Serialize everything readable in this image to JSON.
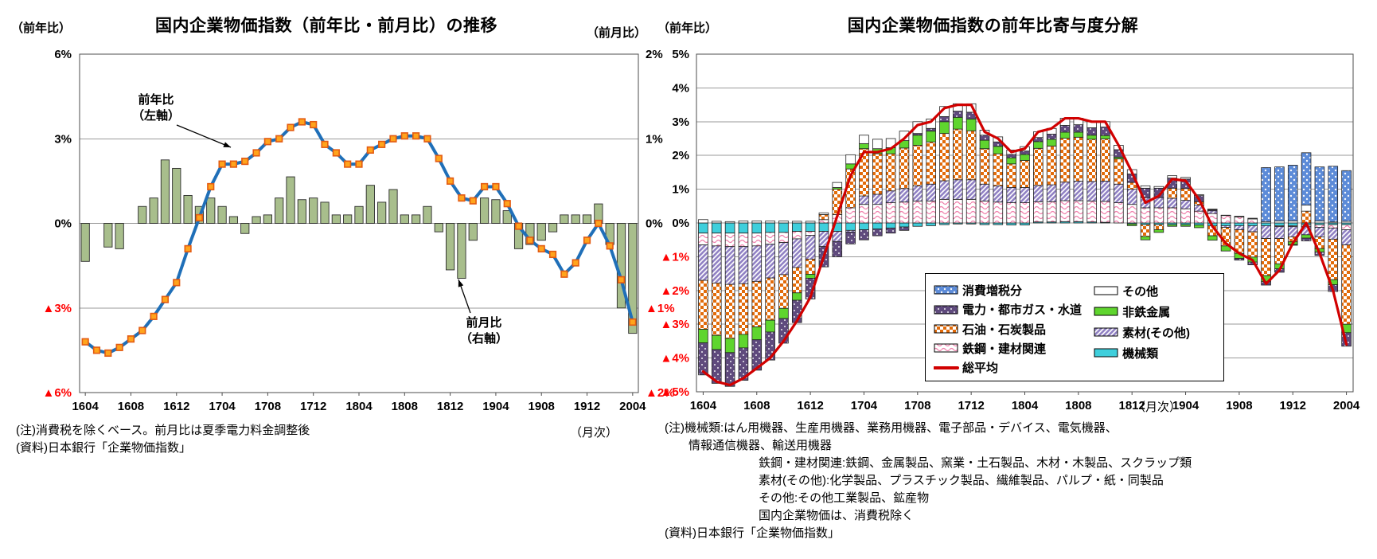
{
  "left_chart": {
    "caption_left": "（前年比）",
    "caption_right": "（前月比）",
    "title": "国内企業物価指数（前年比・前月比）の推移",
    "annotation_line": {
      "l1": "前年比",
      "l2": "（左軸）"
    },
    "annotation_bar": {
      "l1": "前月比",
      "l2": "（右軸）"
    },
    "notes": {
      "l1": "(注)消費税を除くベース。前月比は夏季電力料金調整後",
      "l2": "(資料)日本銀行「企業物価指数」"
    },
    "x_unit": "（月次）"
  },
  "right_chart": {
    "caption_left": "（前年比）",
    "title": "国内企業物価指数の前年比寄与度分解",
    "x_unit": "（月次）",
    "legend": {
      "columns": [
        [
          {
            "key": "tax",
            "label": "消費増税分"
          },
          {
            "key": "utility",
            "label": "電力・都市ガス・水道"
          },
          {
            "key": "oil",
            "label": "石油・石炭製品"
          },
          {
            "key": "steel",
            "label": "鉄鋼・建材関連"
          },
          {
            "key": "total",
            "label": "総平均"
          }
        ],
        [
          {
            "key": "other",
            "label": "その他"
          },
          {
            "key": "nonferrous",
            "label": "非鉄金属"
          },
          {
            "key": "materials",
            "label": "素材(その他)"
          },
          {
            "key": "machinery",
            "label": "機械類"
          }
        ]
      ]
    },
    "notes": [
      "(注)機械類:はん用機器、生産用機器、業務用機器、電子部品・デバイス、電気機器、",
      "情報通信機器、輸送用機器",
      "鉄鋼・建材関連:鉄鋼、金属製品、窯業・土石製品、木材・木製品、スクラップ類",
      "素材(その他):化学製品、プラスチック製品、繊維製品、パルプ・紙・同製品",
      "その他:その他工業製品、鉱産物",
      "国内企業物価は、消費税除く",
      "(資料)日本銀行「企業物価指数」"
    ],
    "note_indents": [
      0,
      2,
      1,
      1,
      1,
      1,
      0
    ]
  },
  "colors": {
    "yoy_line": "#1F6FB8",
    "marker_fill": "#FFA41C",
    "marker_edge": "#E35B12",
    "mom_bar": "#A8BE8C",
    "bar_edge": "#2B2B2B",
    "total_line": "#D10000",
    "tax_base": "#5C8BD8",
    "utility_base": "#5F4A7D",
    "oil": "#E26B0A",
    "steel": "#F080AC",
    "materials": "#9182C4",
    "nonferrous": "#5FD52E",
    "machinery": "#3FCFDC",
    "other": "#FFFFFF",
    "grid": "#9A9A9A",
    "border": "#4D4D4D",
    "negative_tick": "#FF0000"
  },
  "chart_data": [
    {
      "id": "trend",
      "type": "bar+line",
      "title": "国内企業物価指数（前年比・前月比）の推移",
      "months": [
        "1604",
        "1605",
        "1606",
        "1607",
        "1608",
        "1609",
        "1610",
        "1611",
        "1612",
        "1701",
        "1702",
        "1703",
        "1704",
        "1705",
        "1706",
        "1707",
        "1708",
        "1709",
        "1710",
        "1711",
        "1712",
        "1801",
        "1802",
        "1803",
        "1804",
        "1805",
        "1806",
        "1807",
        "1808",
        "1809",
        "1810",
        "1811",
        "1812",
        "1901",
        "1902",
        "1903",
        "1904",
        "1905",
        "1906",
        "1907",
        "1908",
        "1909",
        "1910",
        "1911",
        "1912",
        "2001",
        "2002",
        "2003",
        "2004"
      ],
      "x_tick_labels": [
        "1604",
        "1608",
        "1612",
        "1704",
        "1708",
        "1712",
        "1804",
        "1808",
        "1812",
        "1904",
        "1908",
        "1912",
        "2004"
      ],
      "left_axis": {
        "label": "（前年比）",
        "ticks": [
          "6%",
          "3%",
          "0%",
          "▲3%",
          "▲6%"
        ],
        "values": [
          6,
          3,
          0,
          -3,
          -6
        ],
        "ylim": [
          -6,
          6
        ]
      },
      "right_axis": {
        "label": "（前月比）",
        "ticks": [
          "2%",
          "1%",
          "0%",
          "▲1%",
          "▲2%"
        ],
        "values": [
          2,
          1,
          0,
          -1,
          -2
        ],
        "ylim": [
          -2,
          2
        ]
      },
      "series": [
        {
          "name": "前年比（左軸）",
          "type": "line",
          "axis": "left",
          "values": [
            -4.2,
            -4.5,
            -4.6,
            -4.4,
            -4.1,
            -3.8,
            -3.3,
            -2.7,
            -2.1,
            -0.9,
            0.2,
            1.3,
            2.1,
            2.1,
            2.2,
            2.5,
            2.9,
            3.0,
            3.4,
            3.6,
            3.5,
            2.8,
            2.5,
            2.1,
            2.1,
            2.6,
            2.8,
            3.0,
            3.1,
            3.1,
            3.0,
            2.3,
            1.5,
            0.9,
            0.8,
            1.3,
            1.3,
            0.7,
            -0.1,
            -0.6,
            -0.9,
            -1.1,
            -1.8,
            -1.4,
            -0.6,
            0.0,
            -0.8,
            -2.0,
            -3.5
          ]
        },
        {
          "name": "前月比（右軸）",
          "type": "bar",
          "axis": "right",
          "values": [
            -0.45,
            0.0,
            -0.28,
            -0.3,
            0.0,
            0.2,
            0.3,
            0.75,
            0.65,
            0.33,
            0.2,
            0.3,
            0.2,
            0.08,
            -0.12,
            0.08,
            0.1,
            0.3,
            0.55,
            0.28,
            0.3,
            0.25,
            0.1,
            0.1,
            0.2,
            0.45,
            0.25,
            0.4,
            0.1,
            0.1,
            0.2,
            -0.1,
            -0.55,
            -0.65,
            -0.2,
            0.3,
            0.28,
            0.15,
            -0.3,
            -0.25,
            -0.2,
            -0.1,
            0.1,
            0.1,
            0.1,
            0.23,
            -0.25,
            -1.0,
            -1.3
          ]
        }
      ]
    },
    {
      "id": "contribution",
      "type": "stacked-bar+line",
      "title": "国内企業物価指数の前年比寄与度分解",
      "months": [
        "1604",
        "1605",
        "1606",
        "1607",
        "1608",
        "1609",
        "1610",
        "1611",
        "1612",
        "1701",
        "1702",
        "1703",
        "1704",
        "1705",
        "1706",
        "1707",
        "1708",
        "1709",
        "1710",
        "1711",
        "1712",
        "1801",
        "1802",
        "1803",
        "1804",
        "1805",
        "1806",
        "1807",
        "1808",
        "1809",
        "1810",
        "1811",
        "1812",
        "1901",
        "1902",
        "1903",
        "1904",
        "1905",
        "1906",
        "1907",
        "1908",
        "1909",
        "1910",
        "1911",
        "1912",
        "2001",
        "2002",
        "2003",
        "2004"
      ],
      "x_tick_labels": [
        "1604",
        "1608",
        "1612",
        "1704",
        "1708",
        "1712",
        "1804",
        "1808",
        "1812",
        "1904",
        "1908",
        "1912",
        "2004"
      ],
      "axis": {
        "label": "（前年比）",
        "ticks": [
          "5%",
          "4%",
          "3%",
          "2%",
          "1%",
          "0%",
          "▲1%",
          "▲2%",
          "▲3%",
          "▲4%",
          "▲5%"
        ],
        "values": [
          5,
          4,
          3,
          2,
          1,
          0,
          -1,
          -2,
          -3,
          -4,
          -5
        ],
        "ylim": [
          -5,
          5
        ]
      },
      "stack_order": [
        "machinery",
        "steel",
        "materials",
        "oil",
        "nonferrous",
        "utility",
        "other",
        "tax"
      ],
      "series": [
        {
          "key": "tax",
          "name": "消費増税分",
          "values": [
            0,
            0,
            0,
            0,
            0,
            0,
            0,
            0,
            0,
            0,
            0,
            0,
            0,
            0,
            0,
            0,
            0,
            0,
            0,
            0,
            0,
            0,
            0,
            0,
            0,
            0,
            0,
            0,
            0,
            0,
            0,
            0,
            0,
            0,
            0,
            0,
            0,
            0,
            0,
            0,
            0,
            0,
            1.6,
            1.6,
            1.65,
            1.55,
            1.6,
            1.65,
            1.5
          ]
        },
        {
          "key": "other",
          "name": "その他",
          "values": [
            0.1,
            0.05,
            0.04,
            0.06,
            0.06,
            0.06,
            0.06,
            0.05,
            0.05,
            0.05,
            0.15,
            0.27,
            0.25,
            0.28,
            0.27,
            0.28,
            0.35,
            0.28,
            0.3,
            0.22,
            0.25,
            0.15,
            0.15,
            0.13,
            0.13,
            0.17,
            0.17,
            0.21,
            0.19,
            0.18,
            0.16,
            0.13,
            0.13,
            0.07,
            0.05,
            0.07,
            0.05,
            0.03,
            0.02,
            0.01,
            0.02,
            0.02,
            0.04,
            0.06,
            0.06,
            0.18,
            0.06,
            0.03,
            0.05
          ]
        },
        {
          "key": "utility",
          "name": "電力・都市ガス・水道",
          "values": [
            -0.95,
            -1.0,
            -1.0,
            -0.96,
            -0.9,
            -0.83,
            -0.73,
            -0.66,
            -0.61,
            -0.6,
            -0.45,
            -0.35,
            -0.3,
            -0.2,
            -0.15,
            -0.1,
            0.05,
            0.08,
            0.15,
            0.18,
            0.2,
            0.15,
            0.13,
            0.1,
            0.1,
            0.12,
            0.15,
            0.2,
            0.22,
            0.22,
            0.25,
            0.22,
            0.25,
            0.28,
            0.28,
            0.3,
            0.28,
            0.18,
            0.03,
            0.0,
            -0.05,
            -0.08,
            -0.1,
            -0.1,
            -0.02,
            -0.08,
            -0.1,
            -0.2,
            -0.4
          ]
        },
        {
          "key": "nonferrous",
          "name": "非鉄金属",
          "values": [
            -0.4,
            -0.42,
            -0.42,
            -0.4,
            -0.38,
            -0.35,
            -0.3,
            -0.22,
            -0.12,
            0.0,
            0.05,
            0.15,
            0.15,
            0.15,
            0.18,
            0.22,
            0.3,
            0.32,
            0.35,
            0.35,
            0.35,
            0.25,
            0.22,
            0.18,
            0.18,
            0.2,
            0.2,
            0.18,
            0.15,
            0.12,
            0.1,
            0.05,
            -0.05,
            -0.1,
            -0.08,
            -0.05,
            -0.05,
            -0.08,
            -0.13,
            -0.15,
            -0.15,
            -0.15,
            -0.18,
            -0.15,
            -0.08,
            -0.1,
            -0.1,
            -0.15,
            -0.25
          ]
        },
        {
          "key": "oil",
          "name": "石油・石炭製品",
          "values": [
            -1.45,
            -1.55,
            -1.6,
            -1.5,
            -1.35,
            -1.25,
            -1.0,
            -0.75,
            -0.45,
            0.15,
            0.75,
            1.15,
            1.4,
            1.2,
            1.1,
            1.2,
            1.2,
            1.25,
            1.4,
            1.5,
            1.45,
            1.05,
            0.95,
            0.7,
            0.8,
            1.1,
            1.15,
            1.3,
            1.3,
            1.25,
            1.25,
            0.75,
            0.2,
            -0.35,
            -0.15,
            0.3,
            0.35,
            0.1,
            -0.3,
            -0.55,
            -0.7,
            -0.75,
            -1.1,
            -0.75,
            -0.15,
            0.35,
            -0.35,
            -1.2,
            -2.35
          ]
        },
        {
          "key": "materials",
          "name": "素材(その他)",
          "values": [
            -1.05,
            -1.1,
            -1.12,
            -1.1,
            -1.05,
            -1.0,
            -0.95,
            -0.85,
            -0.7,
            -0.45,
            -0.3,
            -0.05,
            0.25,
            0.3,
            0.35,
            0.4,
            0.45,
            0.5,
            0.55,
            0.58,
            0.58,
            0.5,
            0.48,
            0.45,
            0.45,
            0.48,
            0.5,
            0.55,
            0.58,
            0.58,
            0.6,
            0.55,
            0.45,
            0.3,
            0.3,
            0.28,
            0.25,
            0.18,
            0.08,
            -0.05,
            -0.12,
            -0.18,
            -0.38,
            -0.35,
            -0.3,
            -0.25,
            -0.28,
            -0.33,
            -0.45
          ]
        },
        {
          "key": "steel",
          "name": "鉄鋼・建材関連",
          "values": [
            -0.35,
            -0.38,
            -0.4,
            -0.4,
            -0.38,
            -0.35,
            -0.3,
            -0.22,
            -0.12,
            0.1,
            0.25,
            0.45,
            0.55,
            0.55,
            0.6,
            0.62,
            0.65,
            0.65,
            0.7,
            0.7,
            0.7,
            0.65,
            0.62,
            0.6,
            0.6,
            0.6,
            0.6,
            0.62,
            0.62,
            0.62,
            0.62,
            0.6,
            0.55,
            0.45,
            0.45,
            0.45,
            0.42,
            0.35,
            0.28,
            0.22,
            0.18,
            0.12,
            0.0,
            -0.03,
            -0.03,
            -0.05,
            -0.08,
            -0.1,
            -0.15
          ]
        },
        {
          "key": "machinery",
          "name": "機械類",
          "values": [
            -0.3,
            -0.3,
            -0.3,
            -0.3,
            -0.3,
            -0.28,
            -0.28,
            -0.25,
            -0.25,
            -0.25,
            -0.25,
            -0.22,
            -0.2,
            -0.18,
            -0.15,
            -0.12,
            -0.1,
            -0.08,
            -0.05,
            -0.03,
            -0.03,
            -0.05,
            -0.05,
            -0.06,
            -0.06,
            0.03,
            0.03,
            0.04,
            0.04,
            0.03,
            0.02,
            0.0,
            -0.03,
            -0.05,
            -0.05,
            -0.05,
            -0.05,
            -0.06,
            -0.08,
            -0.08,
            -0.08,
            -0.08,
            -0.08,
            -0.08,
            -0.08,
            -0.05,
            -0.05,
            -0.05,
            -0.05
          ]
        }
      ],
      "line": {
        "name": "総平均",
        "values": [
          -4.4,
          -4.7,
          -4.8,
          -4.6,
          -4.3,
          -4.0,
          -3.5,
          -2.9,
          -2.2,
          -1.0,
          0.2,
          1.4,
          2.1,
          2.1,
          2.2,
          2.5,
          2.9,
          3.0,
          3.4,
          3.5,
          3.5,
          2.7,
          2.5,
          2.1,
          2.2,
          2.7,
          2.8,
          3.1,
          3.1,
          3.0,
          3.0,
          2.3,
          1.5,
          0.6,
          0.8,
          1.3,
          1.25,
          0.7,
          -0.1,
          -0.6,
          -0.9,
          -1.1,
          -1.8,
          -1.4,
          -0.6,
          0.0,
          -0.9,
          -2.0,
          -3.6
        ]
      }
    }
  ]
}
